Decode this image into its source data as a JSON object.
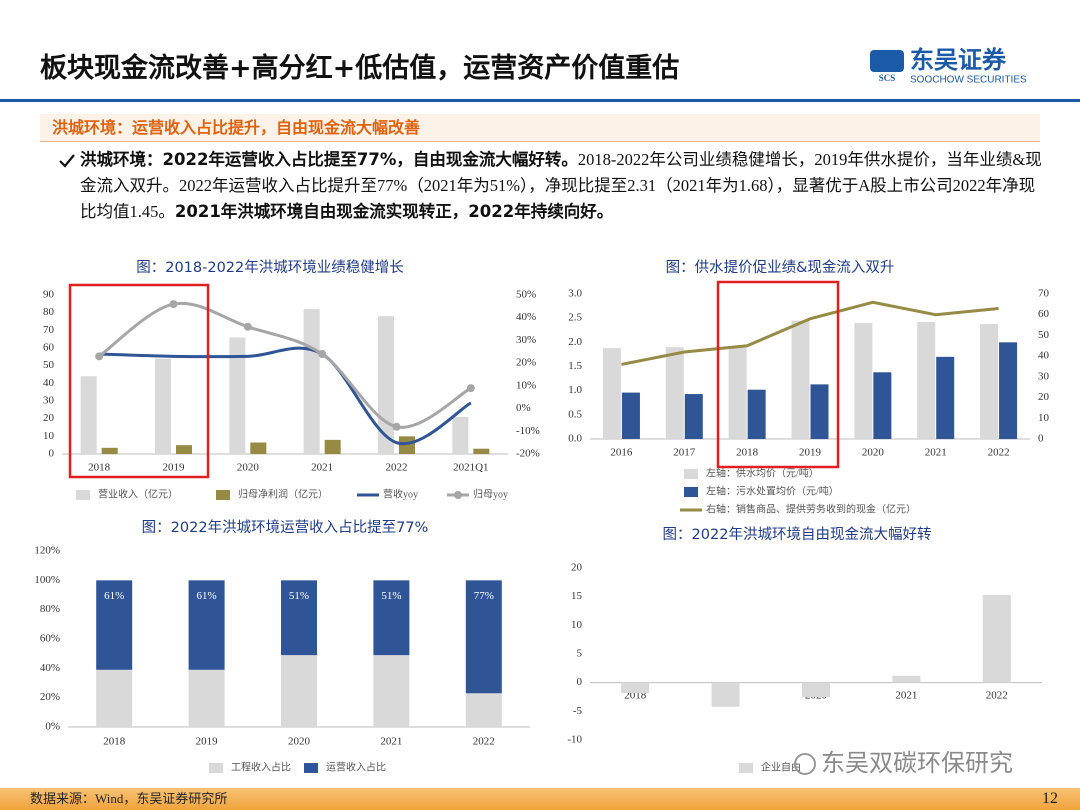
{
  "header": {
    "title": "板块现金流改善+高分红+低估值，运营资产价值重估",
    "logo_cn": "东吴证券",
    "logo_en": "SOOCHOW SECURITIES",
    "logo_mark": "SCS"
  },
  "section": "洪城环境：运营收入占比提升，自由现金流大幅改善",
  "body": {
    "bold1": "洪城环境：2022年运营收入占比提至77%，自由现金流大幅好转。",
    "text1": "2018-2022年公司业绩稳健增长，2019年供水提价，当年业绩&现金流入双升。2022年运营收入占比提升至77%（2021年为51%），净现比提至2.31（2021年为1.68），显著优于A股上市公司2022年净现比均值1.45。",
    "bold2": "2021年洪城环境自由现金流实现转正，2022年持续向好。"
  },
  "chart_data": [
    {
      "type": "bar",
      "title": "图：2018-2022年洪城环境业绩稳健增长",
      "categories": [
        "2018",
        "2019",
        "2020",
        "2021",
        "2022",
        "2021Q1"
      ],
      "ylim": [
        0,
        90
      ],
      "yticks": [
        0,
        10,
        20,
        30,
        40,
        50,
        60,
        70,
        80,
        90
      ],
      "y2lim": [
        -20,
        50
      ],
      "y2ticks": [
        {
          "value": -20,
          "label": "-20%"
        },
        {
          "value": -10,
          "label": "-10%"
        },
        {
          "value": 0,
          "label": "0%"
        },
        {
          "value": 10,
          "label": "10%"
        },
        {
          "value": 20,
          "label": "20%"
        },
        {
          "value": 30,
          "label": "30%"
        },
        {
          "value": 40,
          "label": "40%"
        },
        {
          "value": 50,
          "label": "50%"
        }
      ],
      "series": [
        {
          "name": "营业收入（亿元）",
          "color": "#d9d9d9",
          "values": [
            44,
            54,
            66,
            82,
            78,
            21
          ]
        },
        {
          "name": "归母净利润（亿元）",
          "color": "#978a45",
          "values": [
            3.5,
            5,
            6.5,
            8,
            10,
            3
          ]
        },
        {
          "name": "营收yoy",
          "type": "line",
          "axis": "y2",
          "color": "#2f5597",
          "values": [
            24,
            23,
            23,
            24,
            -15,
            2.5
          ]
        },
        {
          "name": "归母yoy",
          "type": "line",
          "axis": "y2",
          "color": "#a6a6a6",
          "marker": "circle",
          "values": [
            23,
            46,
            36,
            24,
            -8,
            9
          ]
        }
      ]
    },
    {
      "type": "bar",
      "title": "图：供水提价促业绩&现金流入双升",
      "categories": [
        "2016",
        "2017",
        "2018",
        "2019",
        "2020",
        "2021",
        "2022"
      ],
      "ylim": [
        0,
        3
      ],
      "yticks": [
        {
          "value": 0,
          "label": "0.0"
        },
        0.5,
        {
          "value": 1,
          "label": "1.0"
        },
        1.5,
        {
          "value": 2,
          "label": "2.0"
        },
        2.5,
        {
          "value": 3,
          "label": "3.0"
        }
      ],
      "y2lim": [
        0,
        70
      ],
      "y2ticks": [
        0,
        10,
        20,
        30,
        40,
        50,
        60,
        70
      ],
      "series": [
        {
          "name": "左轴：供水均价（元/吨）",
          "color": "#d9d9d9",
          "values": [
            1.88,
            1.9,
            1.92,
            2.45,
            2.4,
            2.42,
            2.38
          ]
        },
        {
          "name": "左轴：污水处置均价（元/吨）",
          "color": "#2f5597",
          "values": [
            0.96,
            0.93,
            1.02,
            1.13,
            1.38,
            1.7,
            2.0
          ]
        },
        {
          "name": "右轴：销售商品、提供劳务收到的现金（亿元）",
          "type": "line",
          "axis": "y2",
          "color": "#978a45",
          "values": [
            36,
            42,
            45,
            58,
            66,
            60,
            63
          ]
        }
      ]
    },
    {
      "type": "bar",
      "stacked": true,
      "title": "图：2022年洪城环境运营收入占比提至77%",
      "categories": [
        "2018",
        "2019",
        "2020",
        "2021",
        "2022"
      ],
      "ylim": [
        0,
        120
      ],
      "yticks": [
        {
          "value": 0,
          "label": "0%"
        },
        {
          "value": 20,
          "label": "20%"
        },
        {
          "value": 40,
          "label": "40%"
        },
        {
          "value": 60,
          "label": "60%"
        },
        {
          "value": 80,
          "label": "80%"
        },
        {
          "value": 100,
          "label": "100%"
        },
        {
          "value": 120,
          "label": "120%"
        }
      ],
      "series": [
        {
          "name": "工程收入占比",
          "color": "#d9d9d9",
          "values": [
            39,
            39,
            49,
            49,
            23
          ]
        },
        {
          "name": "运营收入占比",
          "color": "#2f5597",
          "values": [
            61,
            61,
            51,
            51,
            77
          ],
          "value_labels": [
            "61%",
            "61%",
            "51%",
            "51%",
            "77%"
          ]
        }
      ]
    },
    {
      "type": "bar",
      "title": "图：2022年洪城环境自由现金流大幅好转",
      "categories": [
        "2018",
        "2019",
        "2020",
        "2021",
        "2022"
      ],
      "ylim": [
        -10,
        20
      ],
      "yticks": [
        -10,
        -5,
        0,
        5,
        10,
        15,
        20
      ],
      "series": [
        {
          "name": "企业自由",
          "color": "#d9d9d9",
          "values": [
            -1.8,
            -4.2,
            -2.5,
            1.2,
            15.3
          ]
        }
      ]
    }
  ],
  "watermark": "东吴双碳环保研究",
  "footer": {
    "source": "数据来源：Wind，东吴证券研究所",
    "page": "12"
  }
}
